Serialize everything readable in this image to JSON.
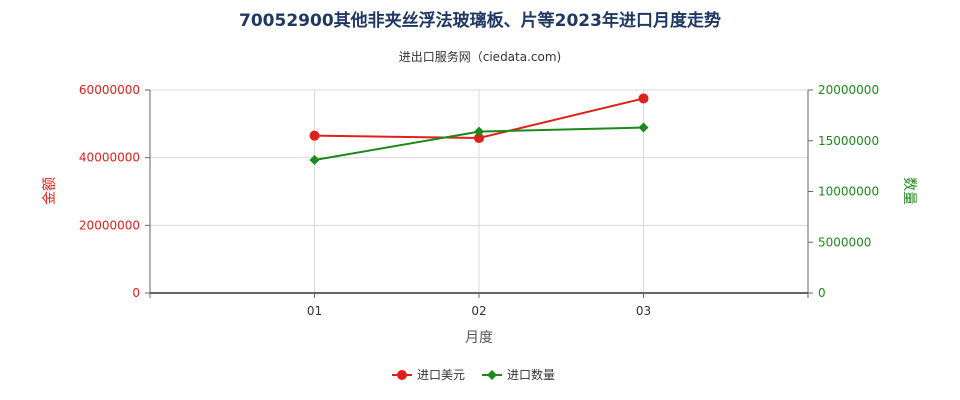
{
  "chart_data": {
    "type": "line",
    "title": "70052900其他非夹丝浮法玻璃板、片等2023年进口月度走势",
    "subtitle": "进出口服务网（ciedata.com)",
    "xlabel": "月度",
    "ylabel_left": "金额",
    "ylabel_right": "数量",
    "categories": [
      "01",
      "02",
      "03"
    ],
    "ylim_left": [
      0,
      60000000
    ],
    "ylim_right": [
      0,
      20000000
    ],
    "yticks_left": [
      "0",
      "20000000",
      "40000000",
      "60000000"
    ],
    "yticks_right": [
      "0",
      "5000000",
      "10000000",
      "15000000",
      "20000000"
    ],
    "grid": true,
    "legend_position": "bottom",
    "series": [
      {
        "name": "进口美元",
        "axis": "left",
        "color": "#e0201b",
        "marker": "circle",
        "values": [
          46500000,
          45800000,
          57500000
        ]
      },
      {
        "name": "进口数量",
        "axis": "right",
        "color": "#1b8a1b",
        "marker": "diamond",
        "values": [
          13100000,
          15900000,
          16300000
        ]
      }
    ]
  }
}
